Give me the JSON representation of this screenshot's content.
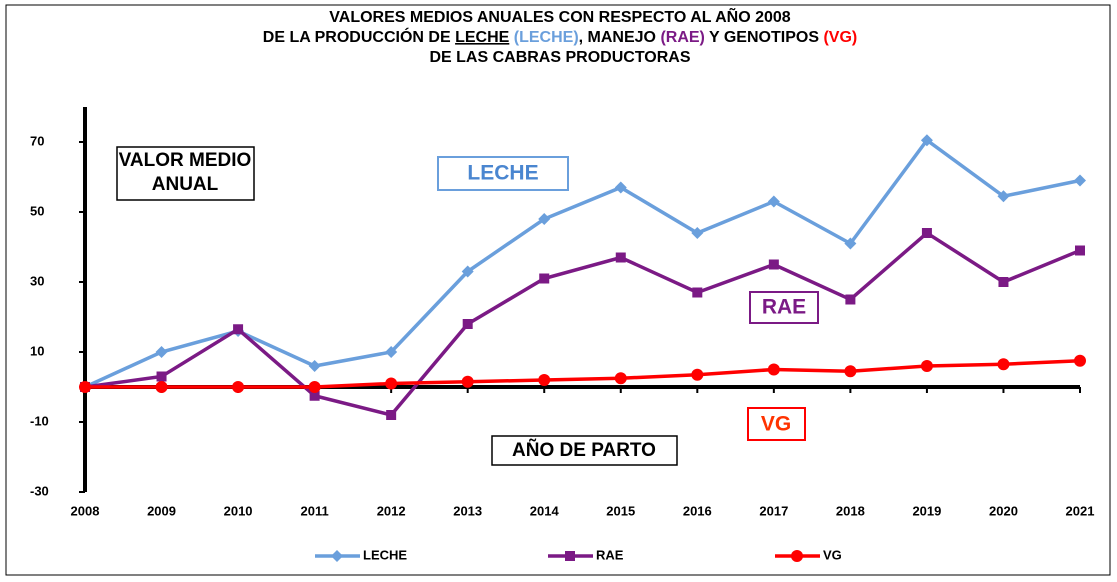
{
  "chart_data": {
    "type": "line",
    "title_lines": [
      "VALORES MEDIOS ANUALES CON RESPECTO AL AÑO 2008",
      [
        "DE LA PRODUCCIÓN DE ",
        "LECHE",
        " (LECHE)",
        ", MANEJO ",
        "(RAE)",
        " Y GENOTIPOS ",
        "(VG)"
      ],
      "DE LAS CABRAS PRODUCTORAS"
    ],
    "annotations": {
      "valor_medio": [
        "VALOR MEDIO",
        "ANUAL"
      ],
      "leche": "LECHE",
      "rae": "RAE",
      "vg": "VG",
      "x_label": "AÑO DE PARTO"
    },
    "categories": [
      "2008",
      "2009",
      "2010",
      "2011",
      "2012",
      "2013",
      "2014",
      "2015",
      "2016",
      "2017",
      "2018",
      "2019",
      "2020",
      "2021"
    ],
    "series": [
      {
        "name": "LECHE",
        "color": "#6a9fdc",
        "marker": "diamond",
        "values": [
          0,
          10,
          16,
          6,
          10,
          33,
          48,
          57,
          44,
          53,
          41,
          70.5,
          54.5,
          59
        ]
      },
      {
        "name": "RAE",
        "color": "#7b1a85",
        "marker": "square",
        "values": [
          0,
          3,
          16.5,
          -2.5,
          -8,
          18,
          31,
          37,
          27,
          35,
          25,
          44,
          30,
          39
        ]
      },
      {
        "name": "VG",
        "color": "#ff0000",
        "marker": "circle",
        "values": [
          0,
          0,
          0,
          0,
          1,
          1.5,
          2,
          2.5,
          3.5,
          5,
          4.5,
          6,
          6.5,
          7.5
        ]
      }
    ],
    "ylim": [
      -30,
      80
    ],
    "yticks": [
      -30,
      -10,
      10,
      30,
      50,
      70
    ],
    "grid": false
  }
}
